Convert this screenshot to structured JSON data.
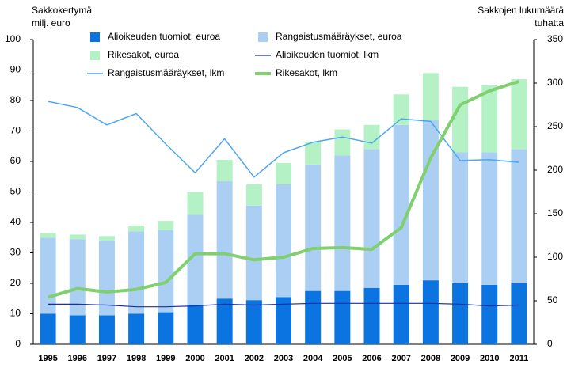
{
  "chart_data": {
    "type": "combo",
    "y_label_lines": [
      "Sakkokertymä",
      "milj. euro"
    ],
    "y2_label_lines": [
      "Sakkojen lukumäärä",
      "tuhatta"
    ],
    "categories": [
      "1995",
      "1996",
      "1997",
      "1998",
      "1999",
      "2000",
      "2001",
      "2002",
      "2003",
      "2004",
      "2005",
      "2006",
      "2007",
      "2008",
      "2009",
      "2010",
      "2011"
    ],
    "ylim": [
      0,
      100
    ],
    "yticks": [
      0,
      10,
      20,
      30,
      40,
      50,
      60,
      70,
      80,
      90,
      100
    ],
    "y2lim": [
      0,
      350
    ],
    "y2ticks": [
      0,
      50,
      100,
      150,
      200,
      250,
      300,
      350
    ],
    "series": [
      {
        "name": "Alioikeuden tuomiot, euroa",
        "type": "bar",
        "color": "#0b74e0",
        "values": [
          10,
          9.5,
          9.5,
          10,
          10.5,
          13,
          15,
          14.5,
          15.5,
          17.5,
          17.5,
          18.5,
          19.5,
          21,
          20,
          19.5,
          20
        ]
      },
      {
        "name": "Rangaistusmääräykset, euroa",
        "type": "bar",
        "color": "#aacff3",
        "values": [
          25,
          25,
          24.5,
          27,
          27,
          29.5,
          38.5,
          31,
          37,
          41.5,
          44.5,
          45.5,
          52.5,
          52.5,
          43,
          43.5,
          44
        ]
      },
      {
        "name": "Rikesakot, euroa",
        "type": "bar",
        "color": "#b4f2c5",
        "values": [
          1.5,
          1.5,
          1.5,
          2,
          3,
          7.5,
          7,
          7,
          7,
          7.5,
          8.5,
          8,
          10,
          15.5,
          21.5,
          22,
          23
        ]
      },
      {
        "name": "Alioikeuden tuomiot, lkm",
        "type": "line",
        "axis": "y2",
        "color": "#1c2fa8",
        "width": 1.2,
        "values": [
          46,
          46,
          45,
          43,
          43,
          44,
          46,
          45,
          46,
          47,
          47,
          47,
          47,
          47,
          46,
          44,
          45
        ]
      },
      {
        "name": "Rangaistusmääräykset, lkm",
        "type": "line",
        "axis": "y2",
        "color": "#4da6f0",
        "width": 1.5,
        "values": [
          279,
          272,
          252,
          265,
          230,
          197,
          236,
          192,
          220,
          232,
          238,
          231,
          259,
          256,
          211,
          212,
          209
        ]
      },
      {
        "name": "Rikesakot, lkm",
        "type": "line",
        "axis": "y2",
        "color": "#80d070",
        "width": 4,
        "values": [
          54,
          64,
          60,
          63,
          71,
          104,
          104,
          97,
          100,
          110,
          111,
          109,
          134,
          214,
          275,
          291,
          302
        ]
      }
    ]
  }
}
